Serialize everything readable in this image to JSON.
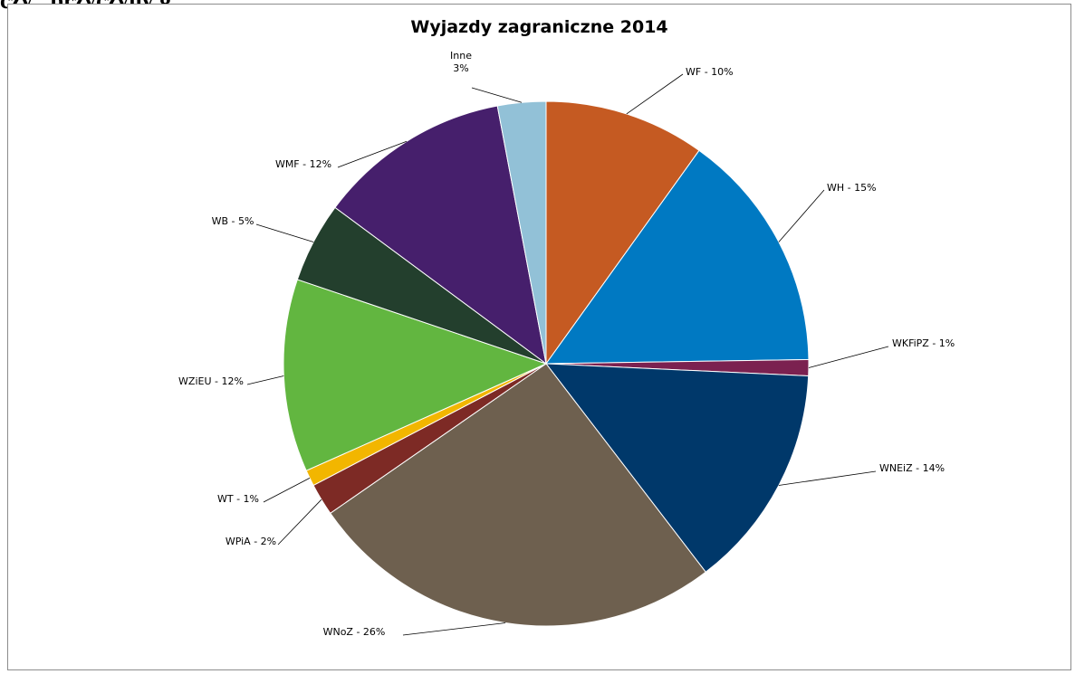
{
  "heading_fragment": "czy , przyczyny g",
  "chart_data": {
    "type": "pie",
    "title": "Wyjazdy zagraniczne 2014",
    "slices": [
      {
        "label": "WF - 10%",
        "value": 10,
        "color": "#C55A22"
      },
      {
        "label": "WH - 15%",
        "value": 15,
        "color": "#0079C2"
      },
      {
        "label": "WKFiPZ - 1%",
        "value": 1,
        "color": "#7B2150"
      },
      {
        "label": "WNEiZ - 14%",
        "value": 14,
        "color": "#00386A"
      },
      {
        "label": "WNoZ - 26%",
        "value": 26,
        "color": "#6E604F"
      },
      {
        "label": "WPiA - 2%",
        "value": 2,
        "color": "#7D2A25"
      },
      {
        "label": "WT - 1%",
        "value": 1,
        "color": "#F2B600"
      },
      {
        "label": "WZiEU - 12%",
        "value": 12,
        "color": "#62B640"
      },
      {
        "label": "WB - 5%",
        "value": 5,
        "color": "#233F2D"
      },
      {
        "label": "WMF - 12%",
        "value": 12,
        "color": "#461F6C"
      },
      {
        "label": "Inne",
        "label2": "3%",
        "value": 3,
        "color": "#92C1D7"
      }
    ]
  }
}
